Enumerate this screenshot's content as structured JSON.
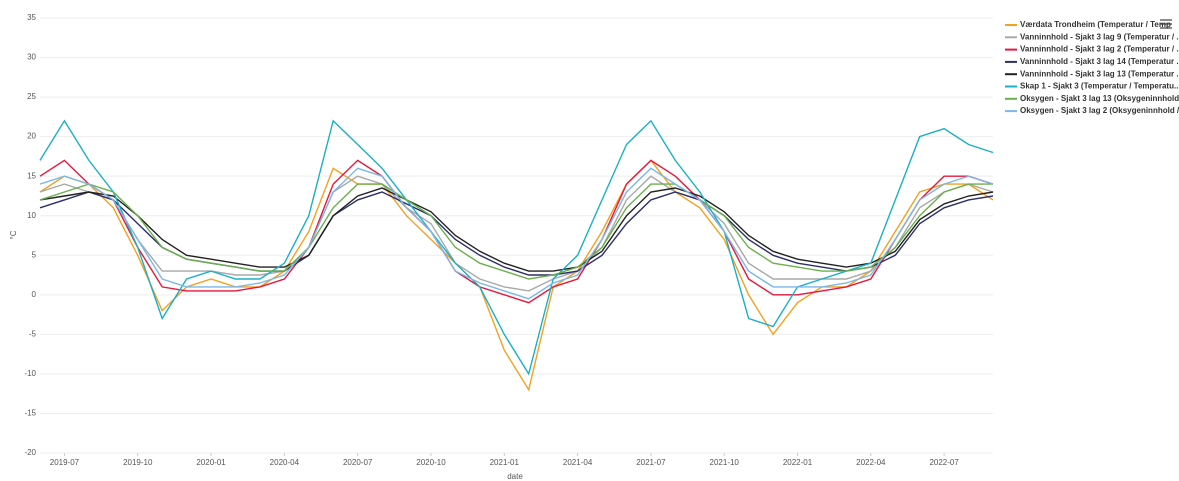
{
  "chart_data": {
    "type": "line",
    "x_label": "date",
    "y_label": "°C",
    "x": [
      "2019-06",
      "2019-07",
      "2019-08",
      "2019-09",
      "2019-10",
      "2019-11",
      "2019-12",
      "2020-01",
      "2020-02",
      "2020-03",
      "2020-04",
      "2020-05",
      "2020-06",
      "2020-07",
      "2020-08",
      "2020-09",
      "2020-10",
      "2020-11",
      "2020-12",
      "2021-01",
      "2021-02",
      "2021-03",
      "2021-04",
      "2021-05",
      "2021-06",
      "2021-07",
      "2021-08",
      "2021-09",
      "2021-10",
      "2021-11",
      "2021-12",
      "2022-01",
      "2022-02",
      "2022-03",
      "2022-04",
      "2022-05",
      "2022-06",
      "2022-07",
      "2022-08",
      "2022-09"
    ],
    "xlim": [
      "2019-06",
      "2022-09"
    ],
    "xticks": [
      "2019-07",
      "2019-10",
      "2020-01",
      "2020-04",
      "2020-07",
      "2020-10",
      "2021-01",
      "2021-04",
      "2021-07",
      "2021-10",
      "2022-01",
      "2022-04",
      "2022-07"
    ],
    "ylim": [
      -20,
      35
    ],
    "yticks": [
      -20,
      -15,
      -10,
      -5,
      0,
      5,
      10,
      15,
      20,
      25,
      30,
      35
    ],
    "grid": true,
    "legend": "right",
    "series": [
      {
        "name": "Værdata Trondheim (Temperatur / Temp",
        "color": "#f5a01e",
        "values": [
          13,
          15,
          14,
          11,
          5,
          -2,
          1,
          2,
          1,
          1,
          3,
          8,
          16,
          14,
          14,
          10,
          7,
          4,
          1,
          -7,
          -12,
          1,
          3,
          8,
          14,
          17,
          13,
          11,
          7,
          0,
          -5,
          -1,
          1,
          1,
          3,
          8,
          13,
          14,
          14,
          12
        ]
      },
      {
        "name": "Vanninnhold - Sjakt 3 lag 9 (Temperatur / ..",
        "color": "#a9a9a9",
        "values": [
          13,
          14,
          13,
          12,
          7,
          3,
          3,
          3,
          2.5,
          2.5,
          3,
          6,
          13,
          15,
          14,
          11,
          9,
          4,
          2,
          1,
          0.5,
          2,
          3,
          6,
          12,
          15,
          13,
          12,
          9,
          4,
          2,
          2,
          2,
          2,
          3,
          6,
          11,
          13,
          14,
          13
        ]
      },
      {
        "name": "Vanninnhold - Sjakt 3 lag 2 (Temperatur / ..",
        "color": "#e8173c",
        "values": [
          15,
          17,
          14,
          12,
          6,
          1,
          0.5,
          0.5,
          0.5,
          1,
          2,
          6,
          14,
          17,
          15,
          11,
          8,
          3,
          1,
          0,
          -1,
          1,
          2,
          7,
          14,
          17,
          15,
          12,
          8,
          2,
          0,
          0,
          0.5,
          1,
          2,
          7,
          12,
          15,
          15,
          14
        ]
      },
      {
        "name": "Vanninnhold - Sjakt 3 lag 14 (Temperatur ..",
        "color": "#2b2f6b",
        "values": [
          11,
          12,
          13,
          12,
          9,
          6,
          4.5,
          4,
          3.5,
          3,
          3,
          5,
          10,
          12,
          13,
          11.5,
          10,
          7,
          5,
          3.5,
          2.5,
          2.5,
          3,
          5,
          9,
          12,
          13,
          12,
          10,
          7,
          5,
          4,
          3.5,
          3,
          3.5,
          5,
          9,
          11,
          12,
          12.5
        ]
      },
      {
        "name": "Vanninnhold - Sjakt 3 lag 13 (Temperatur ..",
        "color": "#222222",
        "values": [
          12,
          12.5,
          13,
          12.5,
          10,
          7,
          5,
          4.5,
          4,
          3.5,
          3.5,
          5,
          10,
          12.5,
          13.5,
          12,
          10.5,
          7.5,
          5.5,
          4,
          3,
          3,
          3.5,
          5.5,
          10,
          13,
          13.5,
          12.5,
          10.5,
          7.5,
          5.5,
          4.5,
          4,
          3.5,
          4,
          5.5,
          9.5,
          11.5,
          12.5,
          13
        ]
      },
      {
        "name": "Skap 1 - Sjakt 3 (Temperatur / Temperatu..",
        "color": "#1ab0c8",
        "values": [
          17,
          22,
          17,
          13,
          6,
          -3,
          2,
          3,
          2,
          2,
          4,
          10,
          22,
          19,
          16,
          12,
          8,
          4,
          1,
          -5,
          -10,
          2,
          5,
          12,
          19,
          22,
          17,
          13,
          8,
          -3,
          -4,
          1,
          2,
          3,
          4,
          12,
          20,
          21,
          19,
          18
        ]
      },
      {
        "name": "Oksygen - Sjakt 3 lag 13 (Oksygeninnhold ..",
        "color": "#6ab04c",
        "values": [
          12,
          13,
          14,
          13,
          10,
          6,
          4.5,
          4,
          3.5,
          3,
          3,
          6,
          11,
          14,
          14,
          12,
          10,
          6,
          4,
          3,
          2,
          2.5,
          3.5,
          6,
          11,
          14,
          14,
          12,
          10,
          6,
          4,
          3.5,
          3,
          3,
          3.5,
          6,
          10,
          13,
          14,
          14
        ]
      },
      {
        "name": "Oksygen - Sjakt 3 lag 2 (Oksygeninnhold /..",
        "color": "#7ab8e8",
        "values": [
          14,
          15,
          14,
          12,
          7,
          2,
          1,
          1,
          1,
          1.5,
          2.5,
          6,
          13,
          16,
          15,
          11,
          8,
          3,
          1.5,
          0.5,
          -0.5,
          1.5,
          2.5,
          7,
          13,
          16,
          14,
          12,
          8,
          3,
          1,
          1,
          1,
          1.5,
          2.5,
          7,
          12,
          14,
          15,
          14
        ]
      }
    ]
  }
}
